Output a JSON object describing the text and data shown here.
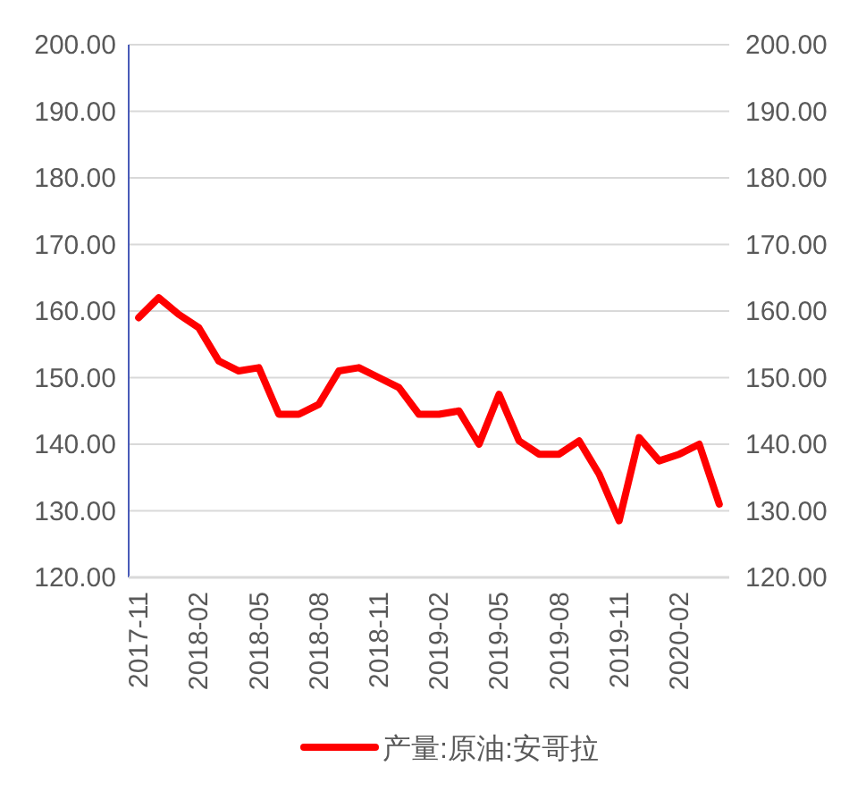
{
  "chart_data": {
    "type": "line",
    "categories": [
      "2017-11",
      null,
      null,
      "2018-02",
      null,
      null,
      "2018-05",
      null,
      null,
      "2018-08",
      null,
      null,
      "2018-11",
      null,
      null,
      "2019-02",
      null,
      null,
      "2019-05",
      null,
      null,
      "2019-08",
      null,
      null,
      "2019-11",
      null,
      null,
      "2020-02",
      null,
      null
    ],
    "series": [
      {
        "name": "产量:原油:安哥拉",
        "color": "#ff0000",
        "values": [
          159,
          162,
          159.5,
          157.5,
          152.5,
          151,
          151.5,
          144.5,
          144.5,
          146,
          151,
          151.5,
          150,
          148.5,
          144.5,
          144.5,
          145,
          140,
          147.5,
          140.5,
          138.5,
          138.5,
          140.5,
          135.5,
          128.5,
          141,
          137.5,
          138.5,
          140,
          131
        ]
      }
    ],
    "ylim": [
      120,
      200
    ],
    "yticks": [
      {
        "value": 120,
        "label": "120.00"
      },
      {
        "value": 130,
        "label": "130.00"
      },
      {
        "value": 140,
        "label": "140.00"
      },
      {
        "value": 150,
        "label": "150.00"
      },
      {
        "value": 160,
        "label": "160.00"
      },
      {
        "value": 170,
        "label": "170.00"
      },
      {
        "value": 180,
        "label": "180.00"
      },
      {
        "value": 190,
        "label": "190.00"
      },
      {
        "value": 200,
        "label": "200.00"
      }
    ],
    "y2lim": [
      120,
      200
    ],
    "y2ticks": [
      {
        "value": 120,
        "label": "120.00"
      },
      {
        "value": 130,
        "label": "130.00"
      },
      {
        "value": 140,
        "label": "140.00"
      },
      {
        "value": 150,
        "label": "150.00"
      },
      {
        "value": 160,
        "label": "160.00"
      },
      {
        "value": 170,
        "label": "170.00"
      },
      {
        "value": 180,
        "label": "180.00"
      },
      {
        "value": 190,
        "label": "190.00"
      },
      {
        "value": 200,
        "label": "200.00"
      }
    ],
    "grid": "y",
    "legend": "bottom",
    "marker": "none",
    "line_style": "solid"
  }
}
